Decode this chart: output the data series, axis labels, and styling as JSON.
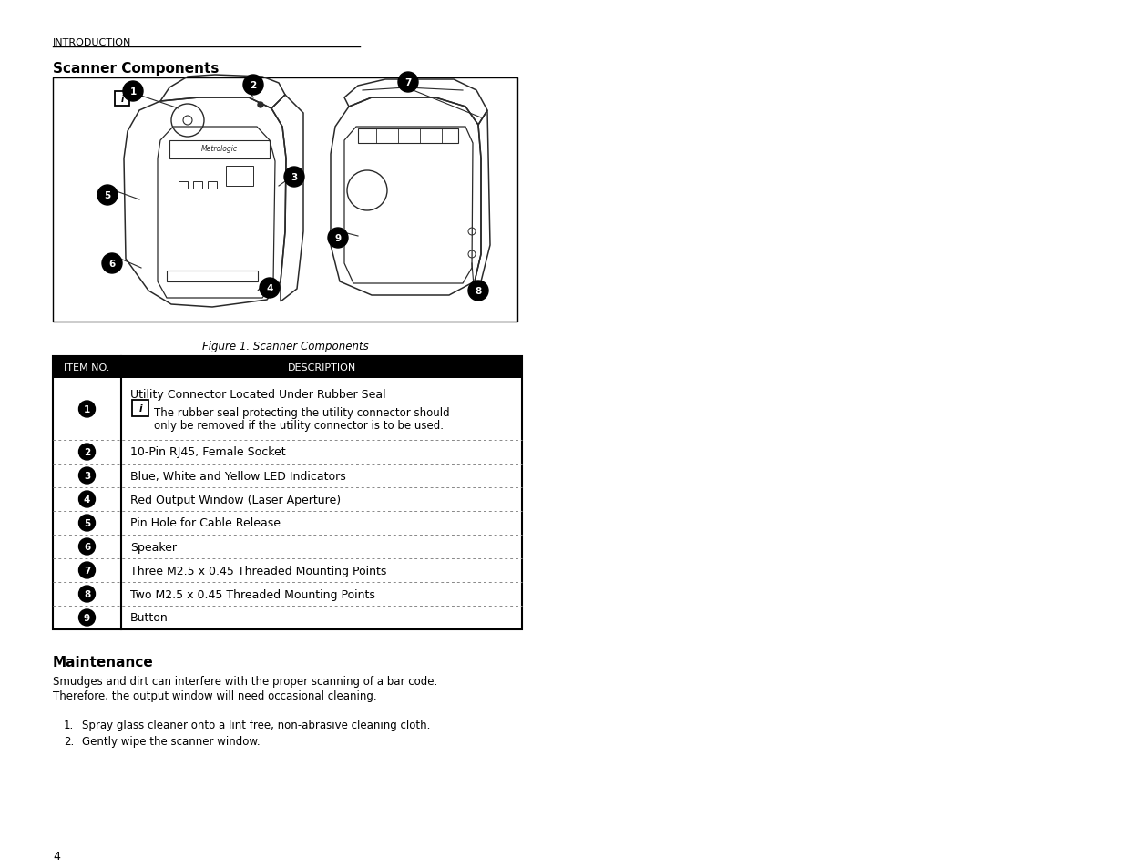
{
  "page_width": 12.35,
  "page_height": 9.54,
  "bg_color": "#ffffff",
  "header_text": "INTRODUCTION",
  "section1_title": "Scanner Components",
  "figure_caption": "Figure 1. Scanner Components",
  "table_header": [
    "ITEM NO.",
    "DESCRIPTION"
  ],
  "table_rows": [
    {
      "num": "1",
      "desc": "Utility Connector Located Under Rubber Seal",
      "has_note": true,
      "note": "The rubber seal protecting the utility connector should\nonly be removed if the utility connector is to be used."
    },
    {
      "num": "2",
      "desc": "10-Pin RJ45, Female Socket",
      "has_note": false,
      "note": ""
    },
    {
      "num": "3",
      "desc": "Blue, White and Yellow LED Indicators",
      "has_note": false,
      "note": ""
    },
    {
      "num": "4",
      "desc": "Red Output Window (Laser Aperture)",
      "has_note": false,
      "note": ""
    },
    {
      "num": "5",
      "desc": "Pin Hole for Cable Release",
      "has_note": false,
      "note": ""
    },
    {
      "num": "6",
      "desc": "Speaker",
      "has_note": false,
      "note": ""
    },
    {
      "num": "7",
      "desc": "Three M2.5 x 0.45 Threaded Mounting Points",
      "has_note": false,
      "note": ""
    },
    {
      "num": "8",
      "desc": "Two M2.5 x 0.45 Threaded Mounting Points",
      "has_note": false,
      "note": ""
    },
    {
      "num": "9",
      "desc": "Button",
      "has_note": false,
      "note": ""
    }
  ],
  "section2_title": "Maintenance",
  "maint_para": "Smudges and dirt can interfere with the proper scanning of a bar code.\nTherefore, the output window will need occasional cleaning.",
  "maint_list": [
    "Spray glass cleaner onto a lint free, non-abrasive cleaning cloth.",
    "Gently wipe the scanner window."
  ],
  "page_num": "4",
  "header_font_size": 7.5,
  "body_font_size": 8.5,
  "title_font_size": 11,
  "table_header_color": "#000000",
  "table_header_text_color": "#ffffff"
}
